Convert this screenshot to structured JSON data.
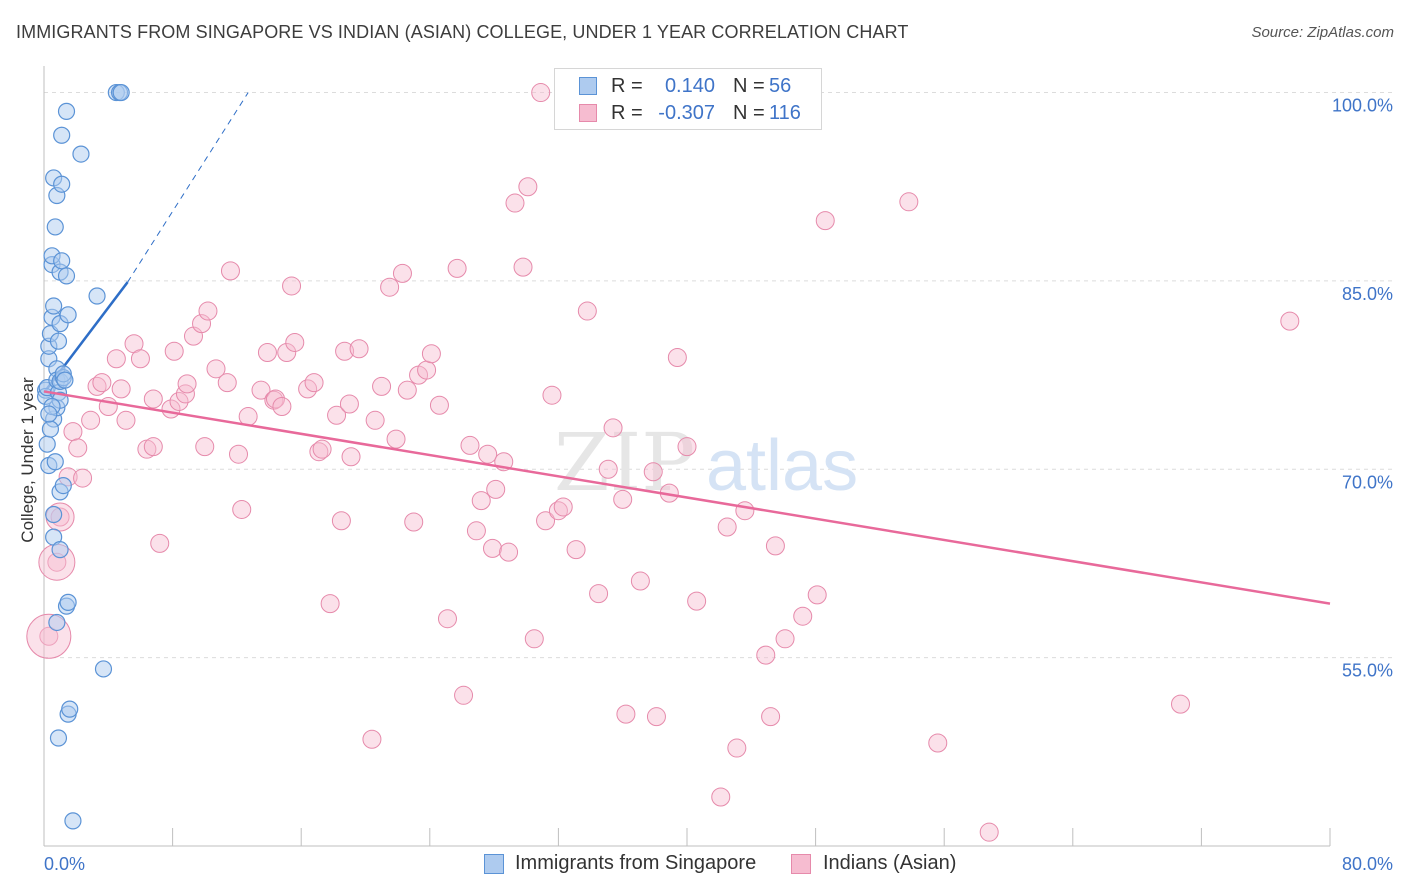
{
  "header": {
    "title": "IMMIGRANTS FROM SINGAPORE VS INDIAN (ASIAN) COLLEGE, UNDER 1 YEAR CORRELATION CHART",
    "source": "Source: ZipAtlas.com"
  },
  "watermark": "ZIPatlas",
  "legend_top": {
    "rows": [
      {
        "r_label": "R =",
        "r_value": "0.140",
        "n_label": "N =",
        "n_value": "56"
      },
      {
        "r_label": "R =",
        "r_value": "-0.307",
        "n_label": "N =",
        "n_value": "116"
      }
    ]
  },
  "legend_bottom": {
    "items": [
      {
        "label": "Immigrants from Singapore"
      },
      {
        "label": "Indians (Asian)"
      }
    ]
  },
  "colors": {
    "blue_fill": "#aecbef",
    "blue_stroke": "#5b93d6",
    "blue_line": "#2e6ec7",
    "pink_fill": "#f6bcd0",
    "pink_stroke": "#e68aab",
    "pink_line": "#e8699a",
    "value_text": "#3f74c8",
    "grid": "#dcdcdc"
  },
  "chart_data": {
    "type": "scatter",
    "title": "IMMIGRANTS FROM SINGAPORE VS INDIAN (ASIAN) COLLEGE, UNDER 1 YEAR CORRELATION CHART",
    "xlabel": "",
    "ylabel": "College, Under 1 year",
    "xlim": [
      0,
      80
    ],
    "ylim": [
      40,
      101
    ],
    "x_tick_labels": [
      "0.0%",
      "80.0%"
    ],
    "y_tick_labels": [
      "100.0%",
      "85.0%",
      "70.0%",
      "55.0%"
    ],
    "y_ticks": [
      100,
      85,
      70,
      55
    ],
    "grid": true,
    "series": [
      {
        "name": "Immigrants from Singapore",
        "R": 0.14,
        "N": 56,
        "trend": {
          "x0": 0,
          "y0": 76.1,
          "x1": 5.2,
          "y1": 84.9,
          "dash_to_x": 12.7,
          "dash_to_y": 100.0
        },
        "points": [
          [
            0.1,
            76.3
          ],
          [
            0.1,
            75.8
          ],
          [
            0.2,
            72.0
          ],
          [
            0.2,
            76.5
          ],
          [
            0.3,
            78.8
          ],
          [
            0.3,
            70.3
          ],
          [
            0.3,
            79.8
          ],
          [
            0.4,
            80.8
          ],
          [
            0.5,
            82.1
          ],
          [
            0.5,
            86.3
          ],
          [
            0.5,
            87.0
          ],
          [
            0.6,
            83.0
          ],
          [
            0.6,
            74.0
          ],
          [
            0.6,
            64.6
          ],
          [
            0.6,
            93.2
          ],
          [
            0.7,
            89.3
          ],
          [
            0.8,
            91.8
          ],
          [
            0.8,
            78.0
          ],
          [
            0.8,
            77.1
          ],
          [
            0.8,
            74.9
          ],
          [
            0.8,
            57.8
          ],
          [
            0.9,
            80.2
          ],
          [
            0.9,
            76.1
          ],
          [
            1.0,
            68.2
          ],
          [
            1.0,
            63.6
          ],
          [
            1.0,
            81.6
          ],
          [
            1.0,
            77.0
          ],
          [
            1.0,
            75.5
          ],
          [
            1.0,
            85.7
          ],
          [
            1.1,
            92.7
          ],
          [
            1.1,
            96.6
          ],
          [
            1.1,
            86.6
          ],
          [
            1.2,
            77.3
          ],
          [
            1.2,
            77.6
          ],
          [
            1.3,
            77.1
          ],
          [
            1.4,
            98.5
          ],
          [
            1.4,
            85.4
          ],
          [
            1.4,
            59.1
          ],
          [
            1.5,
            59.4
          ],
          [
            1.5,
            82.3
          ],
          [
            1.5,
            50.5
          ],
          [
            1.6,
            50.9
          ],
          [
            0.9,
            48.6
          ],
          [
            1.8,
            42.0
          ],
          [
            2.3,
            95.1
          ],
          [
            3.3,
            83.8
          ],
          [
            3.7,
            54.1
          ],
          [
            4.5,
            100.0
          ],
          [
            4.7,
            100.0
          ],
          [
            4.8,
            100.0
          ],
          [
            0.5,
            75.0
          ],
          [
            0.4,
            73.2
          ],
          [
            0.6,
            66.4
          ],
          [
            0.7,
            70.6
          ],
          [
            0.3,
            74.4
          ],
          [
            1.2,
            68.7
          ]
        ]
      },
      {
        "name": "Indians (Asian)",
        "R": -0.307,
        "N": 116,
        "trend": {
          "x0": 0,
          "y0": 76.2,
          "x1": 80,
          "y1": 59.3
        },
        "points": [
          [
            0.3,
            56.7
          ],
          [
            0.8,
            62.6
          ],
          [
            1.0,
            66.2
          ],
          [
            1.5,
            69.4
          ],
          [
            1.8,
            73.0
          ],
          [
            2.1,
            71.7
          ],
          [
            2.4,
            69.3
          ],
          [
            2.9,
            73.9
          ],
          [
            3.3,
            76.6
          ],
          [
            3.6,
            76.9
          ],
          [
            4.0,
            75.0
          ],
          [
            4.5,
            78.8
          ],
          [
            4.8,
            76.4
          ],
          [
            5.1,
            73.9
          ],
          [
            5.6,
            80.0
          ],
          [
            6.0,
            78.8
          ],
          [
            6.4,
            71.6
          ],
          [
            6.8,
            71.8
          ],
          [
            7.2,
            64.1
          ],
          [
            7.9,
            74.8
          ],
          [
            8.1,
            79.4
          ],
          [
            8.4,
            75.4
          ],
          [
            8.8,
            76.0
          ],
          [
            8.9,
            76.8
          ],
          [
            9.3,
            80.6
          ],
          [
            9.8,
            81.6
          ],
          [
            10.2,
            82.6
          ],
          [
            10.0,
            71.8
          ],
          [
            10.7,
            78.0
          ],
          [
            11.4,
            76.9
          ],
          [
            11.6,
            85.8
          ],
          [
            12.3,
            66.8
          ],
          [
            12.7,
            74.2
          ],
          [
            13.5,
            76.3
          ],
          [
            13.9,
            79.3
          ],
          [
            14.3,
            75.5
          ],
          [
            14.4,
            75.6
          ],
          [
            14.8,
            75.0
          ],
          [
            15.1,
            79.3
          ],
          [
            15.4,
            84.6
          ],
          [
            15.6,
            80.1
          ],
          [
            16.4,
            76.4
          ],
          [
            16.8,
            76.9
          ],
          [
            17.1,
            71.4
          ],
          [
            17.3,
            71.6
          ],
          [
            17.8,
            59.3
          ],
          [
            18.2,
            74.3
          ],
          [
            18.5,
            65.9
          ],
          [
            18.7,
            79.4
          ],
          [
            19.0,
            75.2
          ],
          [
            19.1,
            71.0
          ],
          [
            19.6,
            79.6
          ],
          [
            20.4,
            48.5
          ],
          [
            20.6,
            73.9
          ],
          [
            21.0,
            76.6
          ],
          [
            21.5,
            84.5
          ],
          [
            21.9,
            72.4
          ],
          [
            22.3,
            85.6
          ],
          [
            22.6,
            76.3
          ],
          [
            23.0,
            65.8
          ],
          [
            23.3,
            77.5
          ],
          [
            23.8,
            77.9
          ],
          [
            24.1,
            79.2
          ],
          [
            24.6,
            75.1
          ],
          [
            25.1,
            58.1
          ],
          [
            25.7,
            86.0
          ],
          [
            26.1,
            52.0
          ],
          [
            26.5,
            71.9
          ],
          [
            26.9,
            65.1
          ],
          [
            27.2,
            67.5
          ],
          [
            27.6,
            71.2
          ],
          [
            27.9,
            63.7
          ],
          [
            28.1,
            68.4
          ],
          [
            28.6,
            70.6
          ],
          [
            28.9,
            63.4
          ],
          [
            29.3,
            91.2
          ],
          [
            29.8,
            86.1
          ],
          [
            30.1,
            92.5
          ],
          [
            30.5,
            56.5
          ],
          [
            30.9,
            100.0
          ],
          [
            31.2,
            65.9
          ],
          [
            31.6,
            75.9
          ],
          [
            32.0,
            66.7
          ],
          [
            32.3,
            67.0
          ],
          [
            33.1,
            63.6
          ],
          [
            33.8,
            82.6
          ],
          [
            34.5,
            60.1
          ],
          [
            35.1,
            70.0
          ],
          [
            35.4,
            73.3
          ],
          [
            36.0,
            67.6
          ],
          [
            36.2,
            50.5
          ],
          [
            37.1,
            61.1
          ],
          [
            37.9,
            69.8
          ],
          [
            38.1,
            50.3
          ],
          [
            38.9,
            68.1
          ],
          [
            39.4,
            78.9
          ],
          [
            40.0,
            71.8
          ],
          [
            40.6,
            59.5
          ],
          [
            42.1,
            43.9
          ],
          [
            42.5,
            65.4
          ],
          [
            43.1,
            47.8
          ],
          [
            43.6,
            66.7
          ],
          [
            44.9,
            55.2
          ],
          [
            45.2,
            50.3
          ],
          [
            45.5,
            63.9
          ],
          [
            46.1,
            56.5
          ],
          [
            47.2,
            58.3
          ],
          [
            48.1,
            60.0
          ],
          [
            48.6,
            89.8
          ],
          [
            53.8,
            91.3
          ],
          [
            55.6,
            48.2
          ],
          [
            58.8,
            41.1
          ],
          [
            70.7,
            51.3
          ],
          [
            77.5,
            81.8
          ],
          [
            12.1,
            71.2
          ],
          [
            6.8,
            75.6
          ]
        ]
      }
    ]
  }
}
